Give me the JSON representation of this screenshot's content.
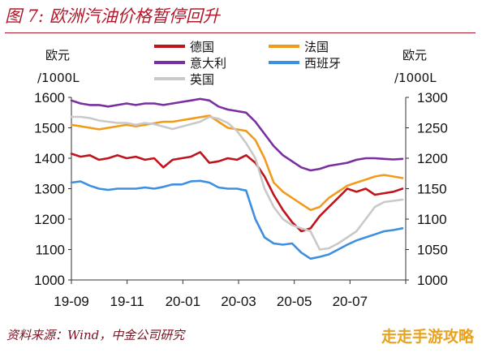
{
  "header": {
    "title": "图 7:  欧洲汽油价格暂停回升"
  },
  "footer": {
    "source": "资料来源：Wind，中金公司研究",
    "watermark": "走走手游攻略"
  },
  "chart_data": {
    "type": "line",
    "y_left_label": [
      "欧元",
      "/1000L"
    ],
    "y_right_label": [
      "欧元",
      "/1000L"
    ],
    "ylim_left": [
      1000,
      1600
    ],
    "ylim_right": [
      1000,
      1300
    ],
    "yticks_left": [
      1000,
      1100,
      1200,
      1300,
      1400,
      1500,
      1600
    ],
    "yticks_right": [
      1000,
      1050,
      1100,
      1150,
      1200,
      1250,
      1300
    ],
    "x_ticks": [
      "19-09",
      "19-11",
      "20-01",
      "20-03",
      "20-05",
      "20-07"
    ],
    "grid": false,
    "legend_position": "top",
    "series": [
      {
        "name": "德国",
        "color": "#c0141c",
        "axis": "left",
        "values": [
          1415,
          1405,
          1410,
          1395,
          1400,
          1410,
          1400,
          1405,
          1395,
          1400,
          1370,
          1395,
          1400,
          1405,
          1420,
          1385,
          1390,
          1400,
          1395,
          1410,
          1385,
          1340,
          1280,
          1230,
          1190,
          1160,
          1170,
          1210,
          1240,
          1270,
          1300,
          1290,
          1300,
          1280,
          1285,
          1290,
          1300
        ]
      },
      {
        "name": "法国",
        "color": "#f29b1b",
        "axis": "left",
        "values": [
          1510,
          1505,
          1500,
          1495,
          1500,
          1505,
          1510,
          1505,
          1510,
          1515,
          1520,
          1520,
          1525,
          1530,
          1535,
          1540,
          1520,
          1500,
          1495,
          1490,
          1460,
          1400,
          1320,
          1290,
          1270,
          1250,
          1230,
          1240,
          1270,
          1290,
          1310,
          1320,
          1330,
          1340,
          1345,
          1340,
          1335
        ]
      },
      {
        "name": "意大利",
        "color": "#7a2fa0",
        "axis": "left",
        "values": [
          1590,
          1580,
          1575,
          1575,
          1570,
          1575,
          1580,
          1575,
          1580,
          1580,
          1575,
          1580,
          1585,
          1590,
          1595,
          1590,
          1570,
          1560,
          1555,
          1550,
          1520,
          1480,
          1440,
          1410,
          1390,
          1370,
          1360,
          1365,
          1375,
          1380,
          1385,
          1395,
          1400,
          1400,
          1398,
          1396,
          1398
        ]
      },
      {
        "name": "西班牙",
        "color": "#3d8fe0",
        "axis": "right",
        "values": [
          1160,
          1162,
          1155,
          1150,
          1148,
          1150,
          1150,
          1150,
          1152,
          1150,
          1153,
          1157,
          1157,
          1162,
          1163,
          1160,
          1152,
          1150,
          1150,
          1147,
          1100,
          1070,
          1060,
          1058,
          1060,
          1045,
          1035,
          1038,
          1042,
          1050,
          1058,
          1065,
          1070,
          1075,
          1080,
          1082,
          1085
        ]
      },
      {
        "name": "英国",
        "color": "#c9c9c9",
        "axis": "right",
        "values": [
          1268,
          1268,
          1266,
          1262,
          1260,
          1258,
          1258,
          1255,
          1258,
          1256,
          1252,
          1248,
          1252,
          1256,
          1260,
          1268,
          1265,
          1258,
          1245,
          1225,
          1200,
          1150,
          1120,
          1100,
          1090,
          1085,
          1080,
          1050,
          1052,
          1060,
          1070,
          1080,
          1100,
          1120,
          1128,
          1130,
          1132
        ]
      }
    ]
  }
}
